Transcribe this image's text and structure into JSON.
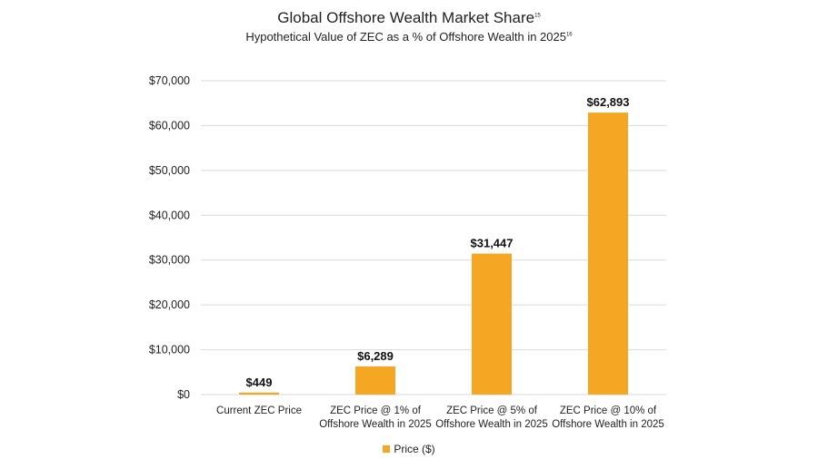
{
  "chart_data": {
    "type": "bar",
    "title": "Global Offshore Wealth Market Share",
    "title_footnote": "15",
    "subtitle": "Hypothetical Value of ZEC as a % of Offshore Wealth in 2025",
    "subtitle_footnote": "16",
    "categories": [
      [
        "Current ZEC Price"
      ],
      [
        "ZEC Price @ 1% of",
        "Offshore Wealth in 2025"
      ],
      [
        "ZEC Price @ 5% of",
        "Offshore Wealth in 2025"
      ],
      [
        "ZEC Price @ 10% of",
        "Offshore Wealth in 2025"
      ]
    ],
    "values": [
      449,
      6289,
      31447,
      62893
    ],
    "data_labels": [
      "$449",
      "$6,289",
      "$31,447",
      "$62,893"
    ],
    "ylim": [
      0,
      70000
    ],
    "yticks": [
      0,
      10000,
      20000,
      30000,
      40000,
      50000,
      60000,
      70000
    ],
    "ytick_labels": [
      "$0",
      "$10,000",
      "$20,000",
      "$30,000",
      "$40,000",
      "$50,000",
      "$60,000",
      "$70,000"
    ],
    "xlabel": "",
    "ylabel": "",
    "grid": true,
    "legend": {
      "position": "bottom-center",
      "entries": [
        {
          "label": "Price  ($)",
          "color": "#F5A623"
        }
      ]
    },
    "bar_color": "#F5A623",
    "grid_color": "#D9D9D9"
  }
}
